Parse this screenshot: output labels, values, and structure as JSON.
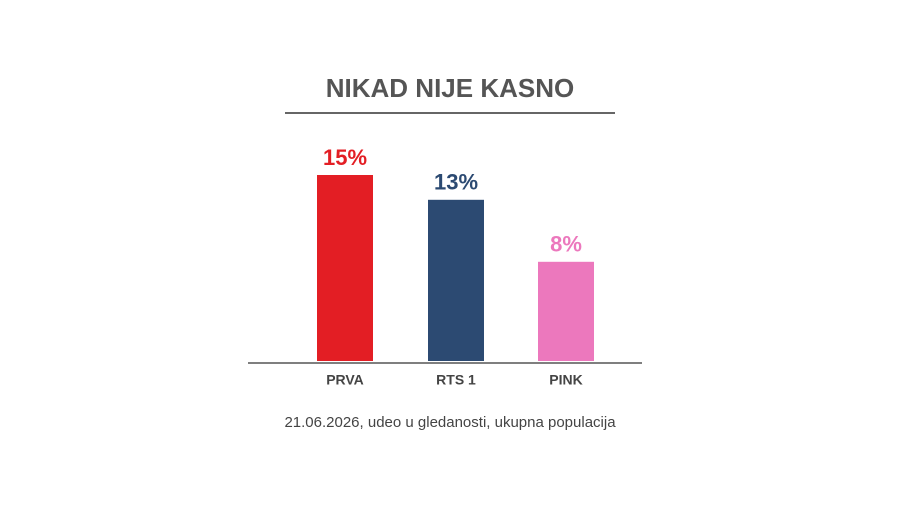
{
  "chart_data": {
    "type": "bar",
    "title": "NIKAD NIJE KASNO",
    "categories": [
      "PRVA",
      "RTS 1",
      "PINK"
    ],
    "values": [
      15,
      13,
      8
    ],
    "value_labels": [
      "15%",
      "13%",
      "8%"
    ],
    "colors": [
      "#e31e24",
      "#2c4a72",
      "#ec78bd"
    ],
    "note": "21.06.2026, udeo u gledanosti, ukupna populacija"
  }
}
